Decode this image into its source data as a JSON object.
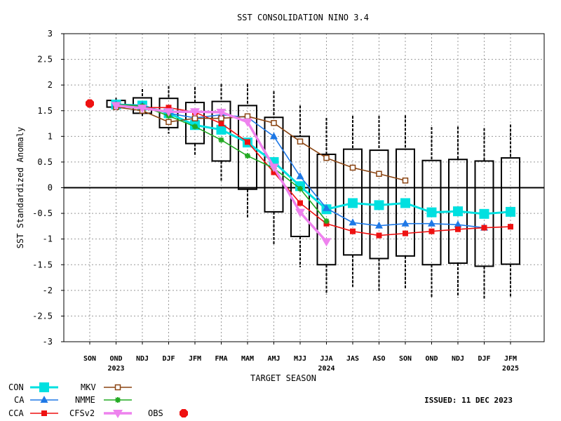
{
  "chart_data": {
    "type": "line",
    "title": "SST CONSOLIDATION NINO 3.4",
    "xlabel": "TARGET SEASON",
    "ylabel": "SST Standardized Anomaly",
    "ylim": [
      -3,
      3
    ],
    "yticks": [
      3,
      2.5,
      2,
      1.5,
      1,
      0.5,
      0,
      -0.5,
      -1,
      -1.5,
      -2,
      -2.5,
      -3
    ],
    "grid": true,
    "categories": [
      "SON",
      "OND",
      "NDJ",
      "DJF",
      "JFM",
      "FMA",
      "MAM",
      "AMJ",
      "MJJ",
      "JJA",
      "JAS",
      "ASO",
      "SON",
      "OND",
      "NDJ",
      "DJF",
      "JFM"
    ],
    "year_labels": [
      {
        "category_index": 1,
        "text": "2023"
      },
      {
        "category_index": 9,
        "text": "2024"
      },
      {
        "category_index": 16,
        "text": "2025"
      }
    ],
    "boxes": [
      {
        "index": 1,
        "whisker_low": 1.55,
        "q1": 1.57,
        "q3": 1.7,
        "whisker_high": 1.75
      },
      {
        "index": 2,
        "whisker_low": 1.37,
        "q1": 1.45,
        "q3": 1.75,
        "whisker_high": 1.92
      },
      {
        "index": 3,
        "whisker_low": 1.05,
        "q1": 1.17,
        "q3": 1.74,
        "whisker_high": 1.98
      },
      {
        "index": 4,
        "whisker_low": 0.63,
        "q1": 0.86,
        "q3": 1.66,
        "whisker_high": 1.96
      },
      {
        "index": 5,
        "whisker_low": 0.13,
        "q1": 0.52,
        "q3": 1.68,
        "whisker_high": 2.02
      },
      {
        "index": 6,
        "whisker_low": -0.58,
        "q1": -0.03,
        "q3": 1.6,
        "whisker_high": 2.02
      },
      {
        "index": 7,
        "whisker_low": -1.1,
        "q1": -0.47,
        "q3": 1.37,
        "whisker_high": 1.88
      },
      {
        "index": 8,
        "whisker_low": -1.55,
        "q1": -0.95,
        "q3": 1.0,
        "whisker_high": 1.6
      },
      {
        "index": 9,
        "whisker_low": -2.08,
        "q1": -1.5,
        "q3": 0.65,
        "whisker_high": 1.36
      },
      {
        "index": 10,
        "whisker_low": -1.93,
        "q1": -1.31,
        "q3": 0.75,
        "whisker_high": 1.4
      },
      {
        "index": 11,
        "whisker_low": -2.03,
        "q1": -1.38,
        "q3": 0.73,
        "whisker_high": 1.4
      },
      {
        "index": 12,
        "whisker_low": -1.98,
        "q1": -1.33,
        "q3": 0.75,
        "whisker_high": 1.41
      },
      {
        "index": 13,
        "whisker_low": -2.13,
        "q1": -1.5,
        "q3": 0.53,
        "whisker_high": 1.18
      },
      {
        "index": 14,
        "whisker_low": -2.13,
        "q1": -1.47,
        "q3": 0.55,
        "whisker_high": 1.19
      },
      {
        "index": 15,
        "whisker_low": -2.18,
        "q1": -1.53,
        "q3": 0.52,
        "whisker_high": 1.16
      },
      {
        "index": 16,
        "whisker_low": -2.13,
        "q1": -1.49,
        "q3": 0.58,
        "whisker_high": 1.23
      }
    ],
    "series": [
      {
        "name": "CON",
        "color": "#00e0e0",
        "marker": "square-big",
        "width": 3,
        "points": [
          [
            1,
            1.62
          ],
          [
            2,
            1.6
          ],
          [
            3,
            1.45
          ],
          [
            4,
            1.22
          ],
          [
            5,
            1.13
          ],
          [
            6,
            0.88
          ],
          [
            7,
            0.5
          ],
          [
            8,
            0.03
          ],
          [
            9,
            -0.42
          ],
          [
            10,
            -0.3
          ],
          [
            11,
            -0.34
          ],
          [
            12,
            -0.3
          ],
          [
            13,
            -0.48
          ],
          [
            14,
            -0.46
          ],
          [
            15,
            -0.51
          ],
          [
            16,
            -0.47
          ]
        ]
      },
      {
        "name": "CA",
        "color": "#1e78e6",
        "marker": "triangle",
        "width": 1.6,
        "points": [
          [
            1,
            1.62
          ],
          [
            2,
            1.6
          ],
          [
            3,
            1.45
          ],
          [
            4,
            1.36
          ],
          [
            5,
            1.42
          ],
          [
            6,
            1.37
          ],
          [
            7,
            1.0
          ],
          [
            8,
            0.22
          ],
          [
            9,
            -0.4
          ],
          [
            10,
            -0.68
          ],
          [
            11,
            -0.74
          ],
          [
            12,
            -0.7
          ],
          [
            13,
            -0.7
          ],
          [
            14,
            -0.72
          ],
          [
            15,
            -0.78
          ]
        ]
      },
      {
        "name": "CCA",
        "color": "#ee1111",
        "marker": "square",
        "width": 1.6,
        "points": [
          [
            2,
            1.56
          ],
          [
            3,
            1.56
          ],
          [
            4,
            1.47
          ],
          [
            5,
            1.25
          ],
          [
            6,
            0.89
          ],
          [
            7,
            0.3
          ],
          [
            8,
            -0.3
          ],
          [
            9,
            -0.7
          ],
          [
            10,
            -0.85
          ],
          [
            11,
            -0.93
          ],
          [
            12,
            -0.89
          ],
          [
            13,
            -0.85
          ],
          [
            14,
            -0.81
          ],
          [
            15,
            -0.78
          ],
          [
            16,
            -0.76
          ]
        ]
      },
      {
        "name": "MKV",
        "color": "#8b4513",
        "marker": "square-open",
        "width": 1.6,
        "points": [
          [
            1,
            1.57
          ],
          [
            2,
            1.5
          ],
          [
            3,
            1.28
          ],
          [
            4,
            1.35
          ],
          [
            5,
            1.35
          ],
          [
            6,
            1.39
          ],
          [
            7,
            1.26
          ],
          [
            8,
            0.9
          ],
          [
            9,
            0.58
          ],
          [
            10,
            0.39
          ],
          [
            11,
            0.27
          ],
          [
            12,
            0.14
          ]
        ]
      },
      {
        "name": "NMME",
        "color": "#22aa22",
        "marker": "star",
        "width": 1.6,
        "points": [
          [
            1,
            1.62
          ],
          [
            2,
            1.59
          ],
          [
            3,
            1.4
          ],
          [
            4,
            1.19
          ],
          [
            5,
            0.93
          ],
          [
            6,
            0.62
          ],
          [
            7,
            0.38
          ],
          [
            8,
            -0.02
          ],
          [
            9,
            -0.65
          ]
        ]
      },
      {
        "name": "CFSv2",
        "color": "#ee82ee",
        "marker": "triangle-down",
        "width": 3.5,
        "points": [
          [
            1,
            1.6
          ],
          [
            2,
            1.55
          ],
          [
            3,
            1.48
          ],
          [
            4,
            1.48
          ],
          [
            5,
            1.47
          ],
          [
            6,
            1.28
          ],
          [
            7,
            0.4
          ],
          [
            8,
            -0.48
          ],
          [
            9,
            -1.05
          ]
        ]
      }
    ],
    "observation": {
      "name": "OBS",
      "color": "#ee1111",
      "category_index": 0,
      "value": 1.64
    },
    "issued": "ISSUED: 11 DEC 2023"
  }
}
